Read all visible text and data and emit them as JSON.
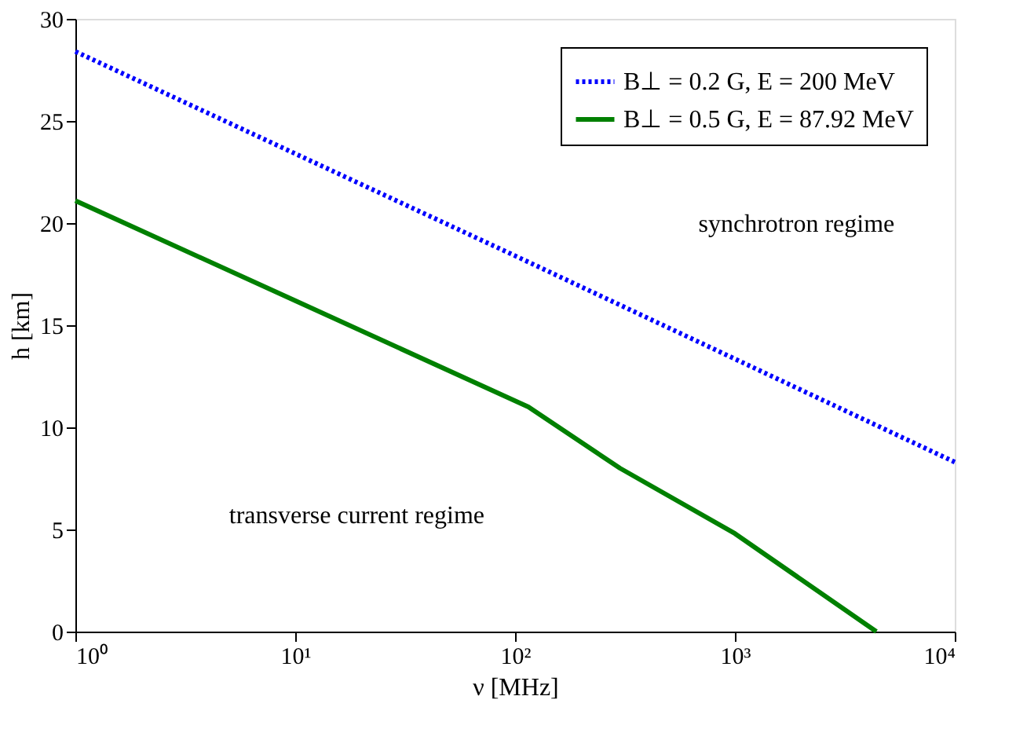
{
  "chart_data": {
    "type": "line",
    "xlabel": "ν [MHz]",
    "ylabel": "h [km]",
    "log": "x",
    "xlim": [
      1,
      10000
    ],
    "xticks": [
      {
        "value": 1,
        "label": "10⁰"
      },
      {
        "value": 10,
        "label": "10¹"
      },
      {
        "value": 100,
        "label": "10²"
      },
      {
        "value": 1000,
        "label": "10³"
      },
      {
        "value": 10000,
        "label": "10⁴"
      }
    ],
    "ylim": [
      0,
      30
    ],
    "yticks": [
      0,
      5,
      10,
      15,
      20,
      25,
      30
    ],
    "grid": false,
    "legend": "top right",
    "marker": "none",
    "annotations": [
      "synchrotron regime",
      "transverse current regime"
    ],
    "series": [
      {
        "name": "B⊥ = 0.2 G, E = 200 MeV",
        "color": "#0000ff",
        "line_style": "dotted",
        "x": [
          1,
          100,
          10000
        ],
        "values": [
          28.4,
          18.4,
          8.3
        ]
      },
      {
        "name": "B⊥ = 0.5 G, E = 87.92 MeV",
        "color": "#008000",
        "line_style": "solid",
        "x": [
          1,
          10,
          115,
          300,
          1000,
          4400
        ],
        "values": [
          21.1,
          16.2,
          11.0,
          8.0,
          4.8,
          0
        ]
      }
    ]
  }
}
